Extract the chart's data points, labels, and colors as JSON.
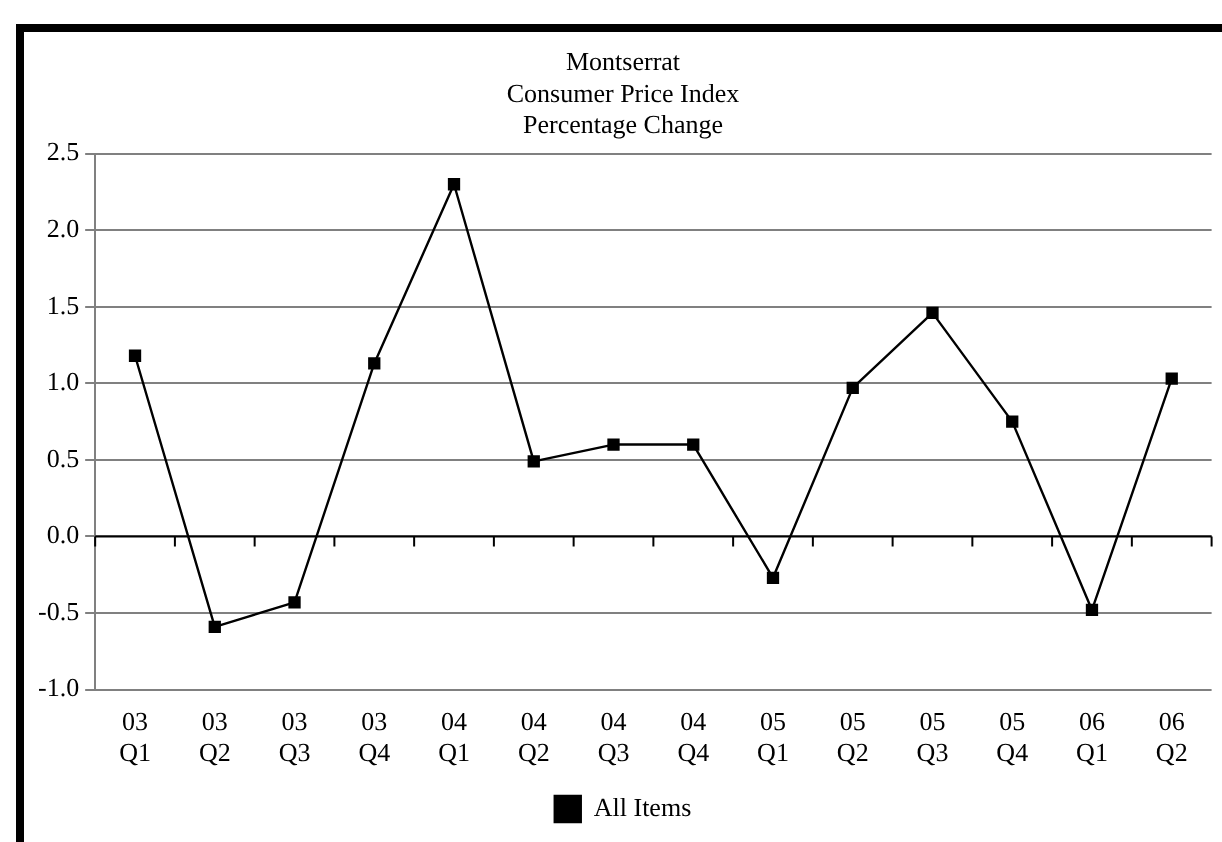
{
  "chart_data": {
    "type": "line",
    "title": [
      "Montserrat",
      "Consumer Price Index",
      "Percentage Change"
    ],
    "categories": [
      "03 Q1",
      "03 Q2",
      "03 Q3",
      "03 Q4",
      "04 Q1",
      "04 Q2",
      "04 Q3",
      "04 Q4",
      "05 Q1",
      "05 Q2",
      "05 Q3",
      "05 Q4",
      "06 Q1",
      "06 Q2"
    ],
    "series": [
      {
        "name": "All Items",
        "color": "#000000",
        "values": [
          1.18,
          -0.59,
          -0.43,
          1.13,
          2.3,
          0.49,
          0.6,
          0.6,
          -0.27,
          0.97,
          1.46,
          0.75,
          -0.48,
          1.03
        ]
      }
    ],
    "ylim": [
      -1.0,
      2.5
    ],
    "yticks": [
      {
        "value": -1,
        "label": "-1.0"
      },
      {
        "value": -0.5,
        "label": "-0.5"
      },
      {
        "value": 0,
        "label": "0.0"
      },
      {
        "value": 0.5,
        "label": "0.5"
      },
      {
        "value": 1,
        "label": "1.0"
      },
      {
        "value": 1.5,
        "label": "1.5"
      },
      {
        "value": 2,
        "label": "2.0"
      },
      {
        "value": 2.5,
        "label": "2.5"
      }
    ],
    "grid": "y",
    "legend": "bottom",
    "marker": "square",
    "line_style": "solid"
  }
}
